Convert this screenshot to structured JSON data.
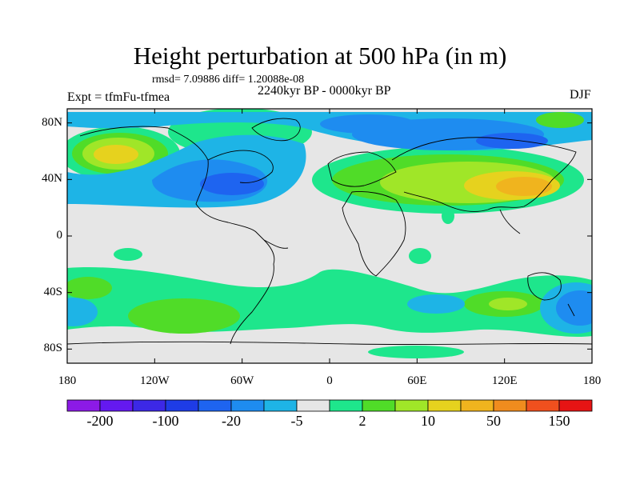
{
  "title": "Height perturbation at 500 hPa (in m)",
  "stats": {
    "rmsd_label": "rmsd= 7.09886 diff= 1.20088e-08"
  },
  "period": "2240kyr BP - 0000kyr BP",
  "experiment": "Expt = tfmFu-tfmea",
  "season": "DJF",
  "map": {
    "lat_labels": [
      "80N",
      "40N",
      "0",
      "40S",
      "80S"
    ],
    "lon_labels": [
      "180",
      "120W",
      "60W",
      "0",
      "60E",
      "120E",
      "180"
    ],
    "lat_values": [
      80,
      40,
      0,
      -40,
      -80
    ],
    "lon_values": [
      -180,
      -120,
      -60,
      0,
      60,
      120,
      180
    ],
    "extent": {
      "lon": [
        -180,
        180
      ],
      "lat": [
        -90,
        90
      ]
    },
    "background_color": "#e6e6e6",
    "land_color": "#000000"
  },
  "colorbar": {
    "colors": [
      "#8c1ae6",
      "#6419f0",
      "#3c28e6",
      "#1e3ce6",
      "#1e64f0",
      "#1e8cf0",
      "#1eb4e6",
      "#e6e6e6",
      "#1ee68c",
      "#50dc28",
      "#a0e628",
      "#e6d21e",
      "#f0b41e",
      "#f08c1e",
      "#f0501e",
      "#e61414"
    ],
    "labels": [
      "-200",
      "-100",
      "-20",
      "-5",
      "2",
      "10",
      "50",
      "150"
    ]
  }
}
